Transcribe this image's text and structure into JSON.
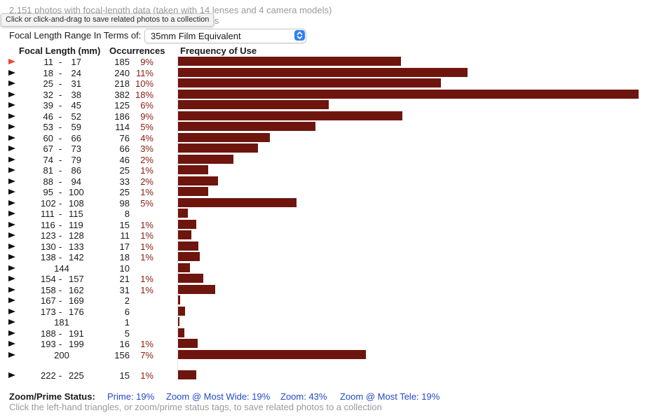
{
  "summary_line": "2,151 photos with focal-length data (taken with 14 lenses and 4 camera models)",
  "summary_line2_fragment": "tos",
  "tooltip": "Click or click-and-drag to save related photos to a collection",
  "range_label": "Focal Length Range In Terms of:",
  "range_selected": "35mm Film Equivalent",
  "headers": {
    "focal": "Focal Length (mm)",
    "occurrences": "Occurrences",
    "frequency": "Frequency of Use"
  },
  "colors": {
    "bar": "#6e150e",
    "percent": "#8b1a10",
    "tag": "#2148c9",
    "active_triangle": "#e8453c"
  },
  "chart_data": {
    "type": "bar",
    "orientation": "horizontal",
    "title": "Frequency of Use",
    "xlabel": "Occurrences",
    "ylabel": "Focal Length (mm)",
    "xlim": [
      0,
      382
    ],
    "rows": [
      {
        "lo": "11",
        "hi": "17",
        "occ": 185,
        "pct": "9%"
      },
      {
        "lo": "18",
        "hi": "24",
        "occ": 240,
        "pct": "11%"
      },
      {
        "lo": "25",
        "hi": "31",
        "occ": 218,
        "pct": "10%"
      },
      {
        "lo": "32",
        "hi": "38",
        "occ": 382,
        "pct": "18%"
      },
      {
        "lo": "39",
        "hi": "45",
        "occ": 125,
        "pct": "6%"
      },
      {
        "lo": "46",
        "hi": "52",
        "occ": 186,
        "pct": "9%"
      },
      {
        "lo": "53",
        "hi": "59",
        "occ": 114,
        "pct": "5%"
      },
      {
        "lo": "60",
        "hi": "66",
        "occ": 76,
        "pct": "4%"
      },
      {
        "lo": "67",
        "hi": "73",
        "occ": 66,
        "pct": "3%"
      },
      {
        "lo": "74",
        "hi": "79",
        "occ": 46,
        "pct": "2%"
      },
      {
        "lo": "81",
        "hi": "86",
        "occ": 25,
        "pct": "1%"
      },
      {
        "lo": "88",
        "hi": "94",
        "occ": 33,
        "pct": "2%"
      },
      {
        "lo": "95",
        "hi": "100",
        "occ": 25,
        "pct": "1%"
      },
      {
        "lo": "102",
        "hi": "108",
        "occ": 98,
        "pct": "5%"
      },
      {
        "lo": "111",
        "hi": "115",
        "occ": 8,
        "pct": ""
      },
      {
        "lo": "116",
        "hi": "119",
        "occ": 15,
        "pct": "1%"
      },
      {
        "lo": "123",
        "hi": "128",
        "occ": 11,
        "pct": "1%"
      },
      {
        "lo": "130",
        "hi": "133",
        "occ": 17,
        "pct": "1%"
      },
      {
        "lo": "138",
        "hi": "142",
        "occ": 18,
        "pct": "1%"
      },
      {
        "single": "144",
        "occ": 10,
        "pct": ""
      },
      {
        "lo": "154",
        "hi": "157",
        "occ": 21,
        "pct": "1%"
      },
      {
        "lo": "158",
        "hi": "162",
        "occ": 31,
        "pct": "1%"
      },
      {
        "lo": "167",
        "hi": "169",
        "occ": 2,
        "pct": ""
      },
      {
        "lo": "173",
        "hi": "176",
        "occ": 6,
        "pct": ""
      },
      {
        "single": "181",
        "occ": 1,
        "pct": ""
      },
      {
        "lo": "188",
        "hi": "191",
        "occ": 5,
        "pct": ""
      },
      {
        "lo": "193",
        "hi": "199",
        "occ": 16,
        "pct": "1%"
      },
      {
        "single": "200",
        "occ": 156,
        "pct": "7%"
      },
      {
        "lo": "222",
        "hi": "225",
        "occ": 15,
        "pct": "1%"
      }
    ]
  },
  "status": {
    "label": "Zoom/Prime Status:",
    "prime": "Prime: 19%",
    "zoom_wide": "Zoom @ Most Wide: 19%",
    "zoom": "Zoom: 43%",
    "zoom_tele": "Zoom @ Most Tele: 19%"
  },
  "footer": "Click the left-hand triangles, or zoom/prime status tags, to save related photos to a collection"
}
